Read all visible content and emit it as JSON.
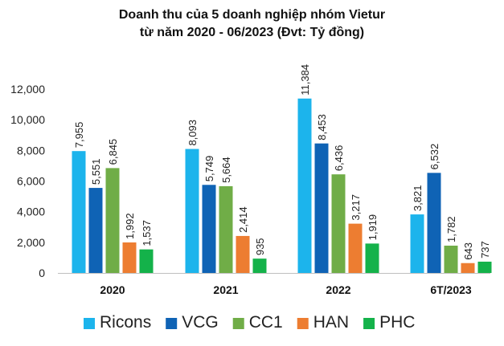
{
  "chart_data": {
    "type": "bar",
    "title": "Doanh thu của 5 doanh nghiệp nhóm Vietur",
    "subtitle": "từ năm 2020 - 06/2023 (Đvt: Tỷ đồng)",
    "categories": [
      "2020",
      "2021",
      "2022",
      "6T/2023"
    ],
    "ylim": [
      0,
      12000
    ],
    "yticks": [
      "0",
      "2,000",
      "4,000",
      "6,000",
      "8,000",
      "10,000",
      "12,000"
    ],
    "series": [
      {
        "name": "Ricons",
        "color": "#1CB4EC",
        "values": [
          7955,
          8093,
          11384,
          3821
        ],
        "labels": [
          "7,955",
          "8,093",
          "11,384",
          "3,821"
        ]
      },
      {
        "name": "VCG",
        "color": "#0F63B5",
        "values": [
          5551,
          5749,
          8453,
          6532
        ],
        "labels": [
          "5,551",
          "5,749",
          "8,453",
          "6,532"
        ]
      },
      {
        "name": "CC1",
        "color": "#70AD47",
        "values": [
          6845,
          5664,
          6436,
          1782
        ],
        "labels": [
          "6,845",
          "5,664",
          "6,436",
          "1,782"
        ]
      },
      {
        "name": "HAN",
        "color": "#ED7D31",
        "values": [
          1992,
          2414,
          3217,
          643
        ],
        "labels": [
          "1,992",
          "2,414",
          "3,217",
          "643"
        ]
      },
      {
        "name": "PHC",
        "color": "#14B24A",
        "values": [
          1537,
          935,
          1919,
          737
        ],
        "labels": [
          "1,537",
          "935",
          "1,919",
          "737"
        ]
      }
    ],
    "grid": false,
    "legend": "bottom"
  }
}
